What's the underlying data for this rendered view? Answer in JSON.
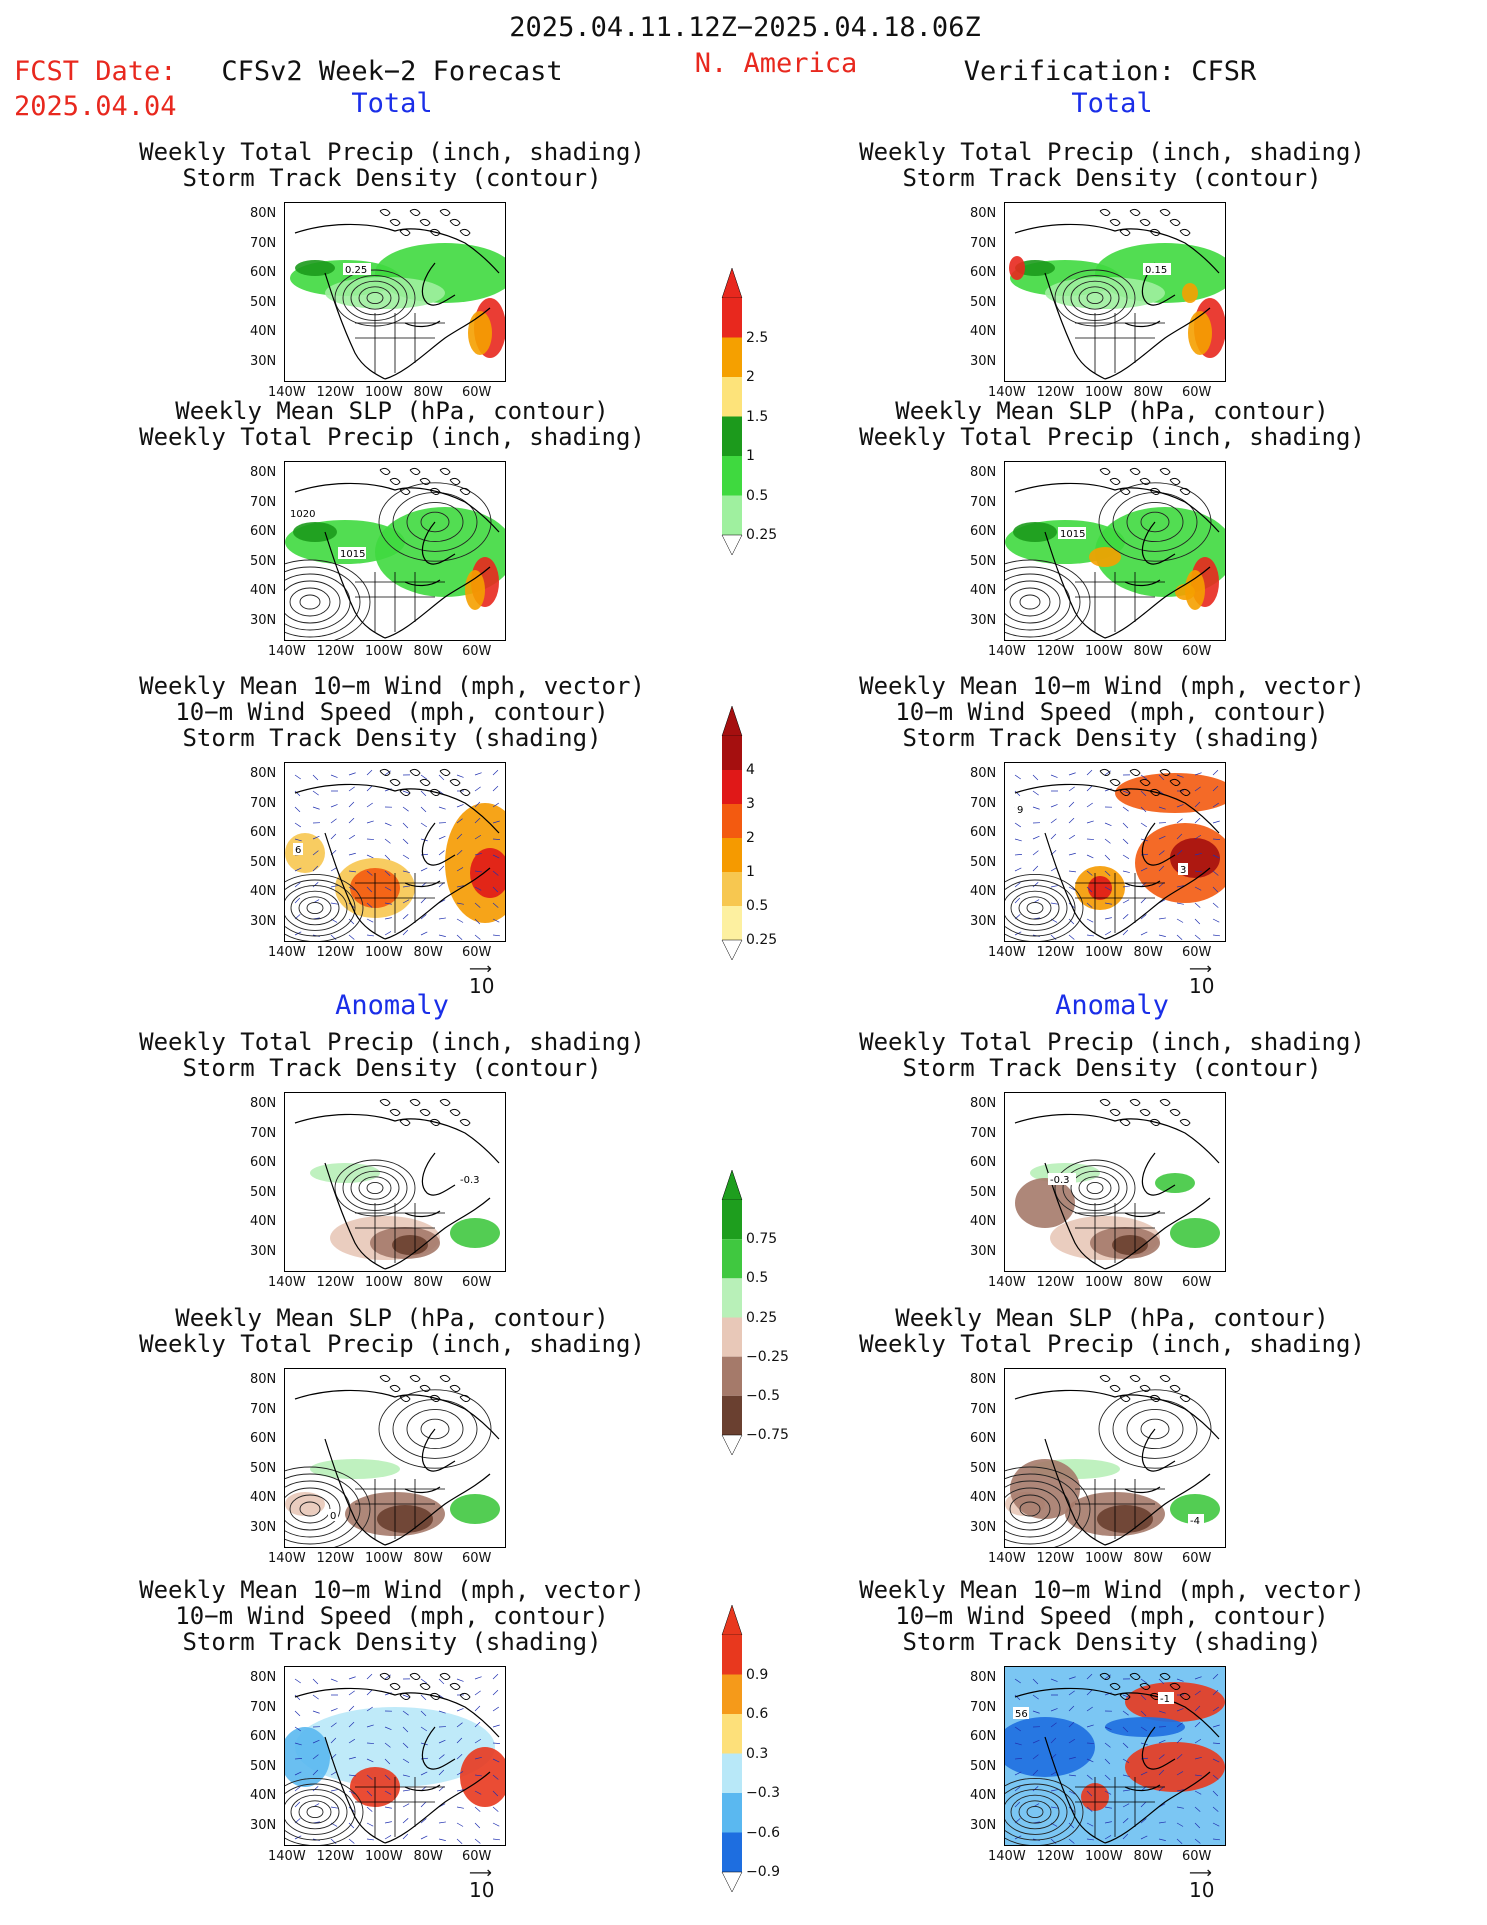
{
  "header": {
    "period": "2025.04.11.12Z−2025.04.18.06Z",
    "fcst_label": "FCST Date:",
    "fcst_date": "2025.04.04",
    "left_title": "CFSv2 Week−2 Forecast",
    "region": "N. America",
    "right_title": "Verification: CFSR"
  },
  "sections": {
    "total": "Total",
    "anomaly": "Anomaly"
  },
  "panel_titles": {
    "precip_storm": [
      "Weekly Total Precip (inch, shading)",
      "Storm Track Density (contour)"
    ],
    "slp_precip": [
      "Weekly Mean SLP (hPa, contour)",
      "Weekly Total Precip (inch, shading)"
    ],
    "wind_storm": [
      "Weekly Mean 10−m Wind (mph, vector)",
      "10−m Wind Speed (mph, contour)",
      "Storm Track Density (shading)"
    ]
  },
  "axes": {
    "lat_labels": [
      "80N",
      "70N",
      "60N",
      "50N",
      "40N",
      "30N"
    ],
    "lon_labels": [
      "140W",
      "120W",
      "100W",
      "80W",
      "60W"
    ]
  },
  "contour_labels": {
    "fc_total_precip": "0.25",
    "vf_total_precip": "0.15",
    "fc_total_slp_a": "1020",
    "fc_total_slp_b": "1015",
    "vf_total_slp": "1015",
    "vf_total_wind_a": "9",
    "vf_total_wind_b": "3",
    "fc_total_wind": "6",
    "fc_anom_precip": "-0.3",
    "vf_anom_precip": "-0.3",
    "fc_anom_slp": "0",
    "vf_anom_slp": "-4",
    "vf_anom_wind_a": "-1",
    "vf_anom_wind_b": "56"
  },
  "vector_ref": "10",
  "colorbars": {
    "total_precip": {
      "labels": [
        "2.5",
        "2",
        "1.5",
        "1",
        "0.5",
        "0.25"
      ],
      "colors": [
        "#e8281e",
        "#f5a000",
        "#fde37a",
        "#1c9a1c",
        "#3fd93f",
        "#9ff09f"
      ]
    },
    "total_storm": {
      "labels": [
        "4",
        "3",
        "2",
        "1",
        "0.5",
        "0.25"
      ],
      "colors": [
        "#a50f0f",
        "#e01818",
        "#f35a10",
        "#f59a00",
        "#f7c750",
        "#fdf0a0"
      ]
    },
    "anom_precip": {
      "labels": [
        "0.75",
        "0.5",
        "0.25",
        "−0.25",
        "−0.5",
        "−0.75"
      ],
      "colors": [
        "#1e9e1e",
        "#40c840",
        "#b8f0b8",
        "#e8c8b8",
        "#a57a6a",
        "#6a4030"
      ]
    },
    "anom_storm": {
      "labels": [
        "0.9",
        "0.6",
        "0.3",
        "−0.3",
        "−0.6",
        "−0.9"
      ],
      "colors": [
        "#e8381e",
        "#f59a1a",
        "#fde07a",
        "#b8e8f8",
        "#5ab8f0",
        "#1e6ee0"
      ]
    }
  },
  "colors": {
    "title_red": "#e8281e",
    "title_blue": "#1a2ee8"
  }
}
